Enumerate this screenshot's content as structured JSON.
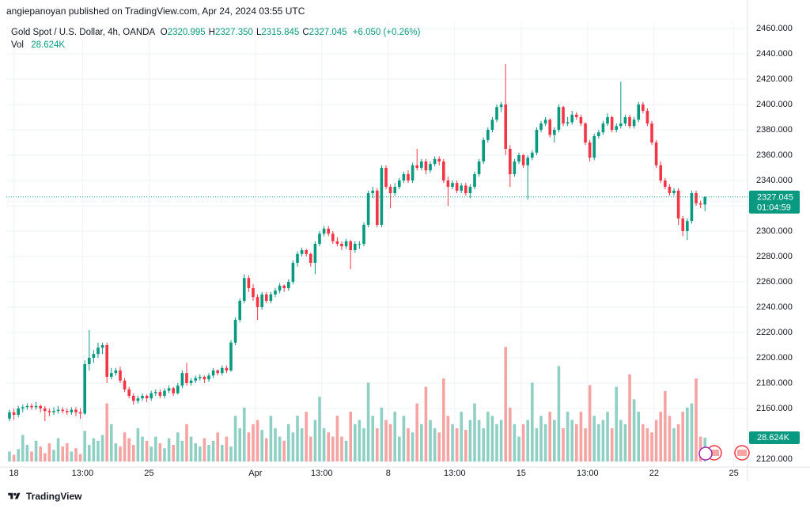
{
  "header": "angiepanoyan published on TradingView.com, Apr 24, 2024 03:55 UTC",
  "legend": {
    "symbol": "Gold Spot / U.S. Dollar, 4h, OANDA",
    "ohlc": [
      {
        "key": "O",
        "value": "2320.995"
      },
      {
        "key": "H",
        "value": "2327.350"
      },
      {
        "key": "L",
        "value": "2315.845"
      },
      {
        "key": "C",
        "value": "2327.045"
      }
    ],
    "change": "+6.050 (+0.26%)",
    "vol_label": "Vol"
  },
  "price_label": {
    "price": "2327.045",
    "countdown": "01:04:59"
  },
  "footer": "TradingView",
  "chart_data": {
    "type": "candlestick",
    "up_color": "#089981",
    "down_color": "#f23645",
    "up_volume_color": "#8fd0c4",
    "down_volume_color": "#f5a3a3",
    "grid": true,
    "xlim": [
      -0.71,
      166.6
    ],
    "xticks": [
      {
        "value": 1,
        "label": "18"
      },
      {
        "value": 16.5,
        "label": "13:00"
      },
      {
        "value": 31.5,
        "label": "25"
      },
      {
        "value": 55.5,
        "label": "Apr"
      },
      {
        "value": 70.5,
        "label": "13:00"
      },
      {
        "value": 85.5,
        "label": "8"
      },
      {
        "value": 100.5,
        "label": "13:00"
      },
      {
        "value": 115.5,
        "label": "15"
      },
      {
        "value": 130.5,
        "label": "13:00"
      },
      {
        "value": 145.5,
        "label": "22"
      },
      {
        "value": 163.5,
        "label": "25"
      }
    ],
    "ylim": [
      2113.75,
      2465
    ],
    "yticks": [
      {
        "value": 2460,
        "label": "2460.000"
      },
      {
        "value": 2440,
        "label": "2440.000"
      },
      {
        "value": 2420,
        "label": "2420.000"
      },
      {
        "value": 2400,
        "label": "2400.000"
      },
      {
        "value": 2380,
        "label": "2380.000"
      },
      {
        "value": 2360,
        "label": "2360.000"
      },
      {
        "value": 2340,
        "label": "2340.000"
      },
      {
        "value": 2320,
        "label": "2320.000"
      },
      {
        "value": 2300,
        "label": "2300.000"
      },
      {
        "value": 2280,
        "label": "2280.000"
      },
      {
        "value": 2260,
        "label": "2260.000"
      },
      {
        "value": 2240,
        "label": "2240.000"
      },
      {
        "value": 2220,
        "label": "2220.000"
      },
      {
        "value": 2200,
        "label": "2200.000"
      },
      {
        "value": 2180,
        "label": "2180.000"
      },
      {
        "value": 2160,
        "label": "2160.000"
      },
      {
        "value": 2120,
        "label": "2120.000"
      }
    ],
    "candles": [
      [
        2152,
        2159,
        2150,
        2157
      ],
      [
        2157,
        2160,
        2151,
        2155
      ],
      [
        2155,
        2162,
        2153,
        2160
      ],
      [
        2160,
        2163,
        2157,
        2161
      ],
      [
        2161,
        2164,
        2159,
        2162
      ],
      [
        2162,
        2164,
        2159,
        2161
      ],
      [
        2161,
        2165,
        2159,
        2162
      ],
      [
        2162,
        2163,
        2157,
        2160
      ],
      [
        2160,
        2162,
        2150,
        2158
      ],
      [
        2158,
        2160,
        2154,
        2157
      ],
      [
        2157,
        2161,
        2155,
        2158
      ],
      [
        2158,
        2162,
        2156,
        2159
      ],
      [
        2159,
        2161,
        2156,
        2158
      ],
      [
        2158,
        2160,
        2155,
        2157
      ],
      [
        2157,
        2161,
        2155,
        2159
      ],
      [
        2159,
        2161,
        2154,
        2157
      ],
      [
        2157,
        2160,
        2152,
        2156
      ],
      [
        2156,
        2198,
        2155,
        2195
      ],
      [
        2195,
        2222,
        2190,
        2200
      ],
      [
        2200,
        2206,
        2196,
        2203
      ],
      [
        2203,
        2212,
        2200,
        2208
      ],
      [
        2208,
        2212,
        2203,
        2210
      ],
      [
        2210,
        2212,
        2180,
        2185
      ],
      [
        2185,
        2192,
        2183,
        2188
      ],
      [
        2188,
        2192,
        2186,
        2190
      ],
      [
        2190,
        2193,
        2180,
        2182
      ],
      [
        2182,
        2184,
        2173,
        2175
      ],
      [
        2175,
        2177,
        2168,
        2170
      ],
      [
        2170,
        2172,
        2163,
        2166
      ],
      [
        2166,
        2170,
        2164,
        2168
      ],
      [
        2168,
        2172,
        2166,
        2170
      ],
      [
        2170,
        2171,
        2165,
        2168
      ],
      [
        2168,
        2174,
        2166,
        2172
      ],
      [
        2172,
        2175,
        2170,
        2173
      ],
      [
        2173,
        2175,
        2168,
        2170
      ],
      [
        2170,
        2176,
        2168,
        2174
      ],
      [
        2174,
        2178,
        2172,
        2176
      ],
      [
        2176,
        2177,
        2170,
        2172
      ],
      [
        2172,
        2180,
        2171,
        2178
      ],
      [
        2178,
        2190,
        2176,
        2188
      ],
      [
        2188,
        2196,
        2178,
        2180
      ],
      [
        2180,
        2184,
        2178,
        2182
      ],
      [
        2182,
        2186,
        2180,
        2184
      ],
      [
        2184,
        2187,
        2182,
        2185
      ],
      [
        2185,
        2186,
        2180,
        2183
      ],
      [
        2183,
        2188,
        2181,
        2186
      ],
      [
        2186,
        2192,
        2184,
        2190
      ],
      [
        2190,
        2191,
        2186,
        2188
      ],
      [
        2188,
        2194,
        2186,
        2192
      ],
      [
        2192,
        2194,
        2188,
        2190
      ],
      [
        2190,
        2214,
        2189,
        2212
      ],
      [
        2212,
        2232,
        2210,
        2230
      ],
      [
        2230,
        2247,
        2228,
        2245
      ],
      [
        2245,
        2266,
        2243,
        2263
      ],
      [
        2263,
        2265,
        2252,
        2255
      ],
      [
        2255,
        2258,
        2245,
        2248
      ],
      [
        2248,
        2250,
        2230,
        2240
      ],
      [
        2240,
        2252,
        2238,
        2250
      ],
      [
        2250,
        2252,
        2243,
        2245
      ],
      [
        2245,
        2252,
        2243,
        2250
      ],
      [
        2250,
        2255,
        2248,
        2253
      ],
      [
        2253,
        2259,
        2251,
        2257
      ],
      [
        2257,
        2258,
        2252,
        2255
      ],
      [
        2255,
        2262,
        2253,
        2260
      ],
      [
        2260,
        2277,
        2258,
        2275
      ],
      [
        2275,
        2284,
        2272,
        2282
      ],
      [
        2282,
        2287,
        2280,
        2285
      ],
      [
        2285,
        2286,
        2280,
        2282
      ],
      [
        2282,
        2283,
        2272,
        2275
      ],
      [
        2275,
        2292,
        2266,
        2290
      ],
      [
        2290,
        2300,
        2288,
        2298
      ],
      [
        2298,
        2304,
        2296,
        2302
      ],
      [
        2302,
        2304,
        2296,
        2298
      ],
      [
        2298,
        2300,
        2290,
        2292
      ],
      [
        2292,
        2295,
        2288,
        2290
      ],
      [
        2290,
        2292,
        2285,
        2288
      ],
      [
        2288,
        2294,
        2286,
        2292
      ],
      [
        2292,
        2293,
        2270,
        2285
      ],
      [
        2285,
        2292,
        2283,
        2290
      ],
      [
        2290,
        2292,
        2286,
        2290
      ],
      [
        2290,
        2307,
        2288,
        2305
      ],
      [
        2305,
        2332,
        2303,
        2330
      ],
      [
        2330,
        2335,
        2326,
        2332
      ],
      [
        2332,
        2334,
        2303,
        2305
      ],
      [
        2305,
        2352,
        2303,
        2350
      ],
      [
        2350,
        2352,
        2333,
        2335
      ],
      [
        2335,
        2337,
        2318,
        2330
      ],
      [
        2330,
        2338,
        2328,
        2335
      ],
      [
        2335,
        2342,
        2333,
        2340
      ],
      [
        2340,
        2347,
        2338,
        2345
      ],
      [
        2345,
        2348,
        2338,
        2340
      ],
      [
        2340,
        2354,
        2338,
        2352
      ],
      [
        2352,
        2365,
        2348,
        2350
      ],
      [
        2350,
        2357,
        2348,
        2355
      ],
      [
        2355,
        2357,
        2345,
        2348
      ],
      [
        2348,
        2355,
        2346,
        2353
      ],
      [
        2353,
        2359,
        2351,
        2357
      ],
      [
        2357,
        2359,
        2352,
        2355
      ],
      [
        2355,
        2357,
        2338,
        2340
      ],
      [
        2340,
        2343,
        2320,
        2335
      ],
      [
        2335,
        2340,
        2333,
        2338
      ],
      [
        2338,
        2340,
        2330,
        2332
      ],
      [
        2332,
        2338,
        2330,
        2336
      ],
      [
        2336,
        2338,
        2328,
        2330
      ],
      [
        2330,
        2337,
        2326,
        2335
      ],
      [
        2335,
        2347,
        2333,
        2345
      ],
      [
        2345,
        2357,
        2343,
        2355
      ],
      [
        2355,
        2374,
        2353,
        2372
      ],
      [
        2372,
        2382,
        2370,
        2380
      ],
      [
        2380,
        2390,
        2378,
        2388
      ],
      [
        2388,
        2400,
        2386,
        2398
      ],
      [
        2398,
        2402,
        2394,
        2400
      ],
      [
        2400,
        2432,
        2360,
        2365
      ],
      [
        2365,
        2368,
        2335,
        2345
      ],
      [
        2345,
        2357,
        2343,
        2355
      ],
      [
        2355,
        2362,
        2353,
        2360
      ],
      [
        2360,
        2361,
        2350,
        2352
      ],
      [
        2352,
        2360,
        2325,
        2358
      ],
      [
        2358,
        2364,
        2356,
        2362
      ],
      [
        2362,
        2382,
        2360,
        2380
      ],
      [
        2380,
        2387,
        2378,
        2385
      ],
      [
        2385,
        2390,
        2383,
        2388
      ],
      [
        2388,
        2389,
        2374,
        2376
      ],
      [
        2376,
        2382,
        2370,
        2380
      ],
      [
        2380,
        2400,
        2378,
        2398
      ],
      [
        2398,
        2399,
        2383,
        2385
      ],
      [
        2385,
        2390,
        2383,
        2386
      ],
      [
        2386,
        2395,
        2384,
        2392
      ],
      [
        2392,
        2394,
        2388,
        2390
      ],
      [
        2390,
        2392,
        2383,
        2385
      ],
      [
        2385,
        2386,
        2368,
        2370
      ],
      [
        2370,
        2372,
        2355,
        2358
      ],
      [
        2358,
        2377,
        2356,
        2375
      ],
      [
        2375,
        2380,
        2373,
        2378
      ],
      [
        2378,
        2387,
        2376,
        2385
      ],
      [
        2385,
        2393,
        2383,
        2390
      ],
      [
        2390,
        2391,
        2378,
        2380
      ],
      [
        2380,
        2385,
        2378,
        2383
      ],
      [
        2383,
        2418,
        2381,
        2385
      ],
      [
        2385,
        2392,
        2383,
        2390
      ],
      [
        2390,
        2392,
        2381,
        2383
      ],
      [
        2383,
        2390,
        2381,
        2388
      ],
      [
        2388,
        2402,
        2386,
        2400
      ],
      [
        2400,
        2402,
        2393,
        2395
      ],
      [
        2395,
        2397,
        2383,
        2385
      ],
      [
        2385,
        2387,
        2368,
        2370
      ],
      [
        2370,
        2372,
        2350,
        2352
      ],
      [
        2352,
        2355,
        2338,
        2340
      ],
      [
        2340,
        2342,
        2333,
        2335
      ],
      [
        2335,
        2337,
        2328,
        2330
      ],
      [
        2330,
        2334,
        2328,
        2332
      ],
      [
        2332,
        2334,
        2305,
        2310
      ],
      [
        2310,
        2312,
        2296,
        2300
      ],
      [
        2300,
        2310,
        2293,
        2308
      ],
      [
        2308,
        2332,
        2306,
        2330
      ],
      [
        2330,
        2332,
        2320,
        2322
      ],
      [
        2322,
        2324,
        2318,
        2321
      ],
      [
        2320.995,
        2327.35,
        2315.845,
        2327.045
      ]
    ],
    "volume": {
      "name": "Vol",
      "vlim": [
        0,
        536
      ],
      "last_value_label": "28.624K",
      "values": [
        12,
        8,
        15,
        32,
        20,
        12,
        25,
        18,
        10,
        22,
        14,
        28,
        18,
        22,
        12,
        16,
        9,
        37,
        20,
        28,
        25,
        32,
        70,
        45,
        22,
        18,
        35,
        28,
        20,
        40,
        30,
        25,
        18,
        30,
        22,
        16,
        28,
        20,
        35,
        25,
        45,
        30,
        22,
        18,
        28,
        20,
        25,
        35,
        20,
        30,
        18,
        55,
        40,
        65,
        35,
        45,
        50,
        38,
        28,
        55,
        40,
        30,
        25,
        45,
        35,
        55,
        40,
        60,
        30,
        50,
        78,
        40,
        35,
        30,
        55,
        30,
        25,
        60,
        45,
        50,
        40,
        95,
        55,
        40,
        65,
        50,
        45,
        60,
        30,
        55,
        40,
        35,
        70,
        45,
        90,
        50,
        40,
        35,
        100,
        55,
        45,
        40,
        60,
        38,
        50,
        70,
        50,
        40,
        60,
        55,
        45,
        50,
        138,
        65,
        45,
        30,
        45,
        50,
        95,
        40,
        55,
        45,
        60,
        50,
        115,
        40,
        60,
        50,
        45,
        60,
        40,
        92,
        55,
        45,
        50,
        60,
        40,
        90,
        50,
        45,
        105,
        75,
        60,
        45,
        40,
        35,
        50,
        60,
        85,
        55,
        40,
        45,
        60,
        65,
        70,
        100,
        30,
        28.624
      ]
    }
  }
}
